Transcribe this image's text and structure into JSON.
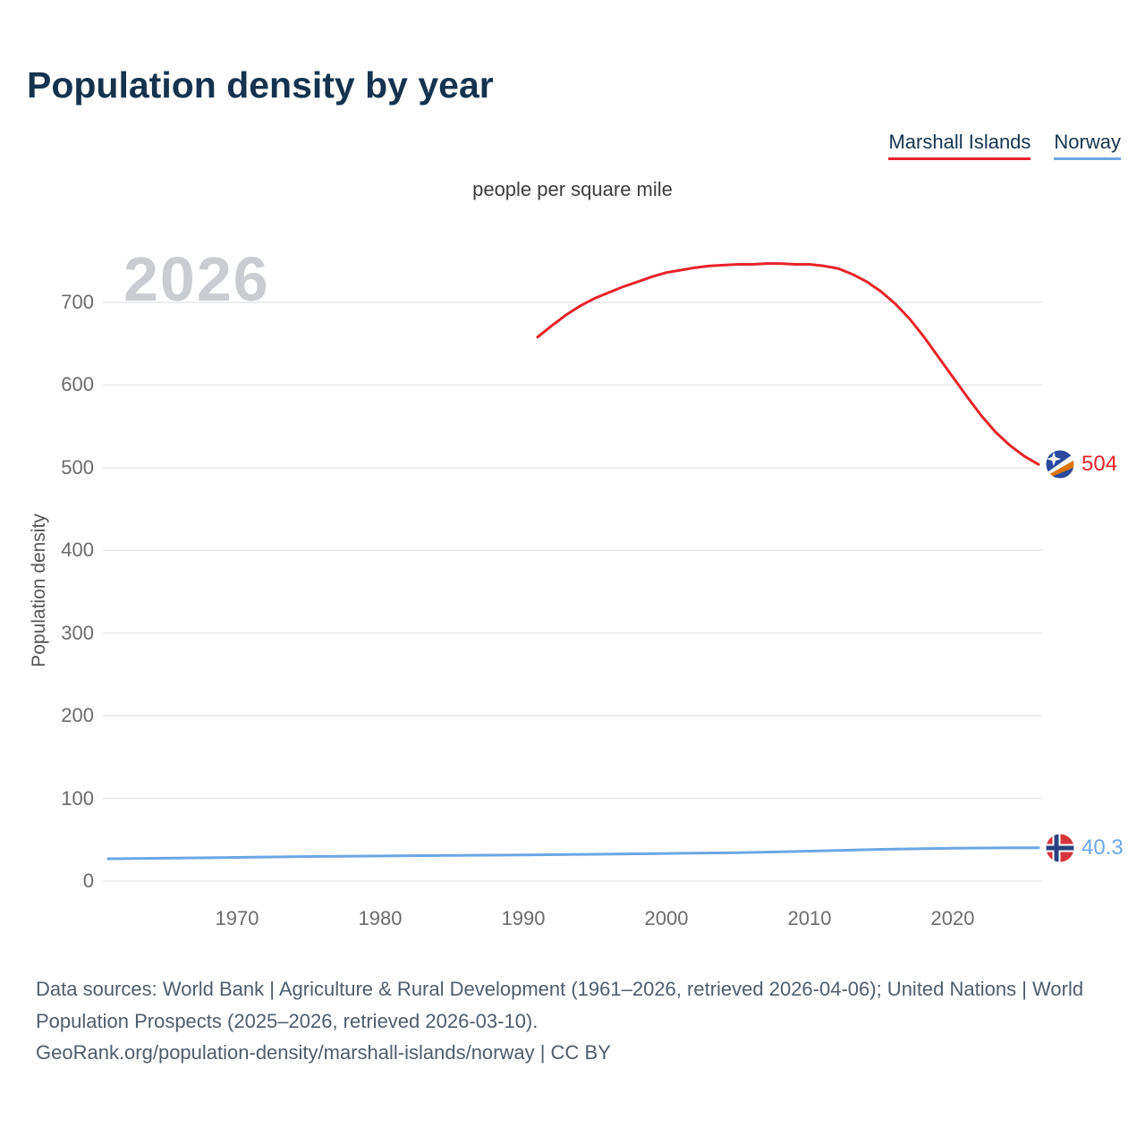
{
  "title": "Population density by year",
  "subtitle": "people per square mile",
  "watermark_year": "2026",
  "legend": {
    "items": [
      {
        "label": "Marshall Islands",
        "color": "#e8232a"
      },
      {
        "label": "Norway",
        "color": "#6aa7e4"
      }
    ]
  },
  "y_axis": {
    "label": "Population density",
    "ticks": [
      0,
      100,
      200,
      300,
      400,
      500,
      600,
      700
    ]
  },
  "x_axis": {
    "ticks": [
      1970,
      1980,
      1990,
      2000,
      2010,
      2020
    ]
  },
  "chart_data": {
    "type": "line",
    "title": "Population density by year",
    "unit": "people per square mile",
    "xlabel": "",
    "ylabel": "Population density",
    "xlim": [
      1961,
      2026
    ],
    "ylim": [
      0,
      780
    ],
    "grid": true,
    "legend_position": "top-right",
    "series": [
      {
        "name": "Marshall Islands",
        "color": "#e8232a",
        "end_label": "504",
        "points": [
          [
            1991,
            658
          ],
          [
            1992,
            672
          ],
          [
            1993,
            685
          ],
          [
            1994,
            696
          ],
          [
            1995,
            705
          ],
          [
            1996,
            712
          ],
          [
            1997,
            719
          ],
          [
            1998,
            725
          ],
          [
            1999,
            731
          ],
          [
            2000,
            736
          ],
          [
            2001,
            739
          ],
          [
            2002,
            742
          ],
          [
            2003,
            744
          ],
          [
            2004,
            745
          ],
          [
            2005,
            746
          ],
          [
            2006,
            746
          ],
          [
            2007,
            747
          ],
          [
            2008,
            747
          ],
          [
            2009,
            746
          ],
          [
            2010,
            746
          ],
          [
            2011,
            744
          ],
          [
            2012,
            741
          ],
          [
            2013,
            734
          ],
          [
            2014,
            725
          ],
          [
            2015,
            713
          ],
          [
            2016,
            698
          ],
          [
            2017,
            680
          ],
          [
            2018,
            658
          ],
          [
            2019,
            634
          ],
          [
            2020,
            610
          ],
          [
            2021,
            586
          ],
          [
            2022,
            563
          ],
          [
            2023,
            543
          ],
          [
            2024,
            527
          ],
          [
            2025,
            514
          ],
          [
            2026,
            504
          ]
        ]
      },
      {
        "name": "Norway",
        "color": "#6aa7e4",
        "end_label": "40.3",
        "points": [
          [
            1961,
            27.0
          ],
          [
            1965,
            27.7
          ],
          [
            1970,
            28.7
          ],
          [
            1975,
            29.7
          ],
          [
            1980,
            30.4
          ],
          [
            1985,
            31.0
          ],
          [
            1990,
            31.6
          ],
          [
            1995,
            32.5
          ],
          [
            2000,
            33.4
          ],
          [
            2005,
            34.4
          ],
          [
            2010,
            36.2
          ],
          [
            2015,
            38.4
          ],
          [
            2020,
            39.8
          ],
          [
            2022,
            40.0
          ],
          [
            2024,
            40.2
          ],
          [
            2026,
            40.3
          ]
        ]
      }
    ]
  },
  "footer": {
    "sources": "Data sources: World Bank | Agriculture & Rural Development (1961–2026, retrieved 2026-04-06); United Nations | World Population Prospects (2025–2026, retrieved 2026-03-10).",
    "attribution": "GeoRank.org/population-density/marshall-islands/norway | CC BY"
  }
}
